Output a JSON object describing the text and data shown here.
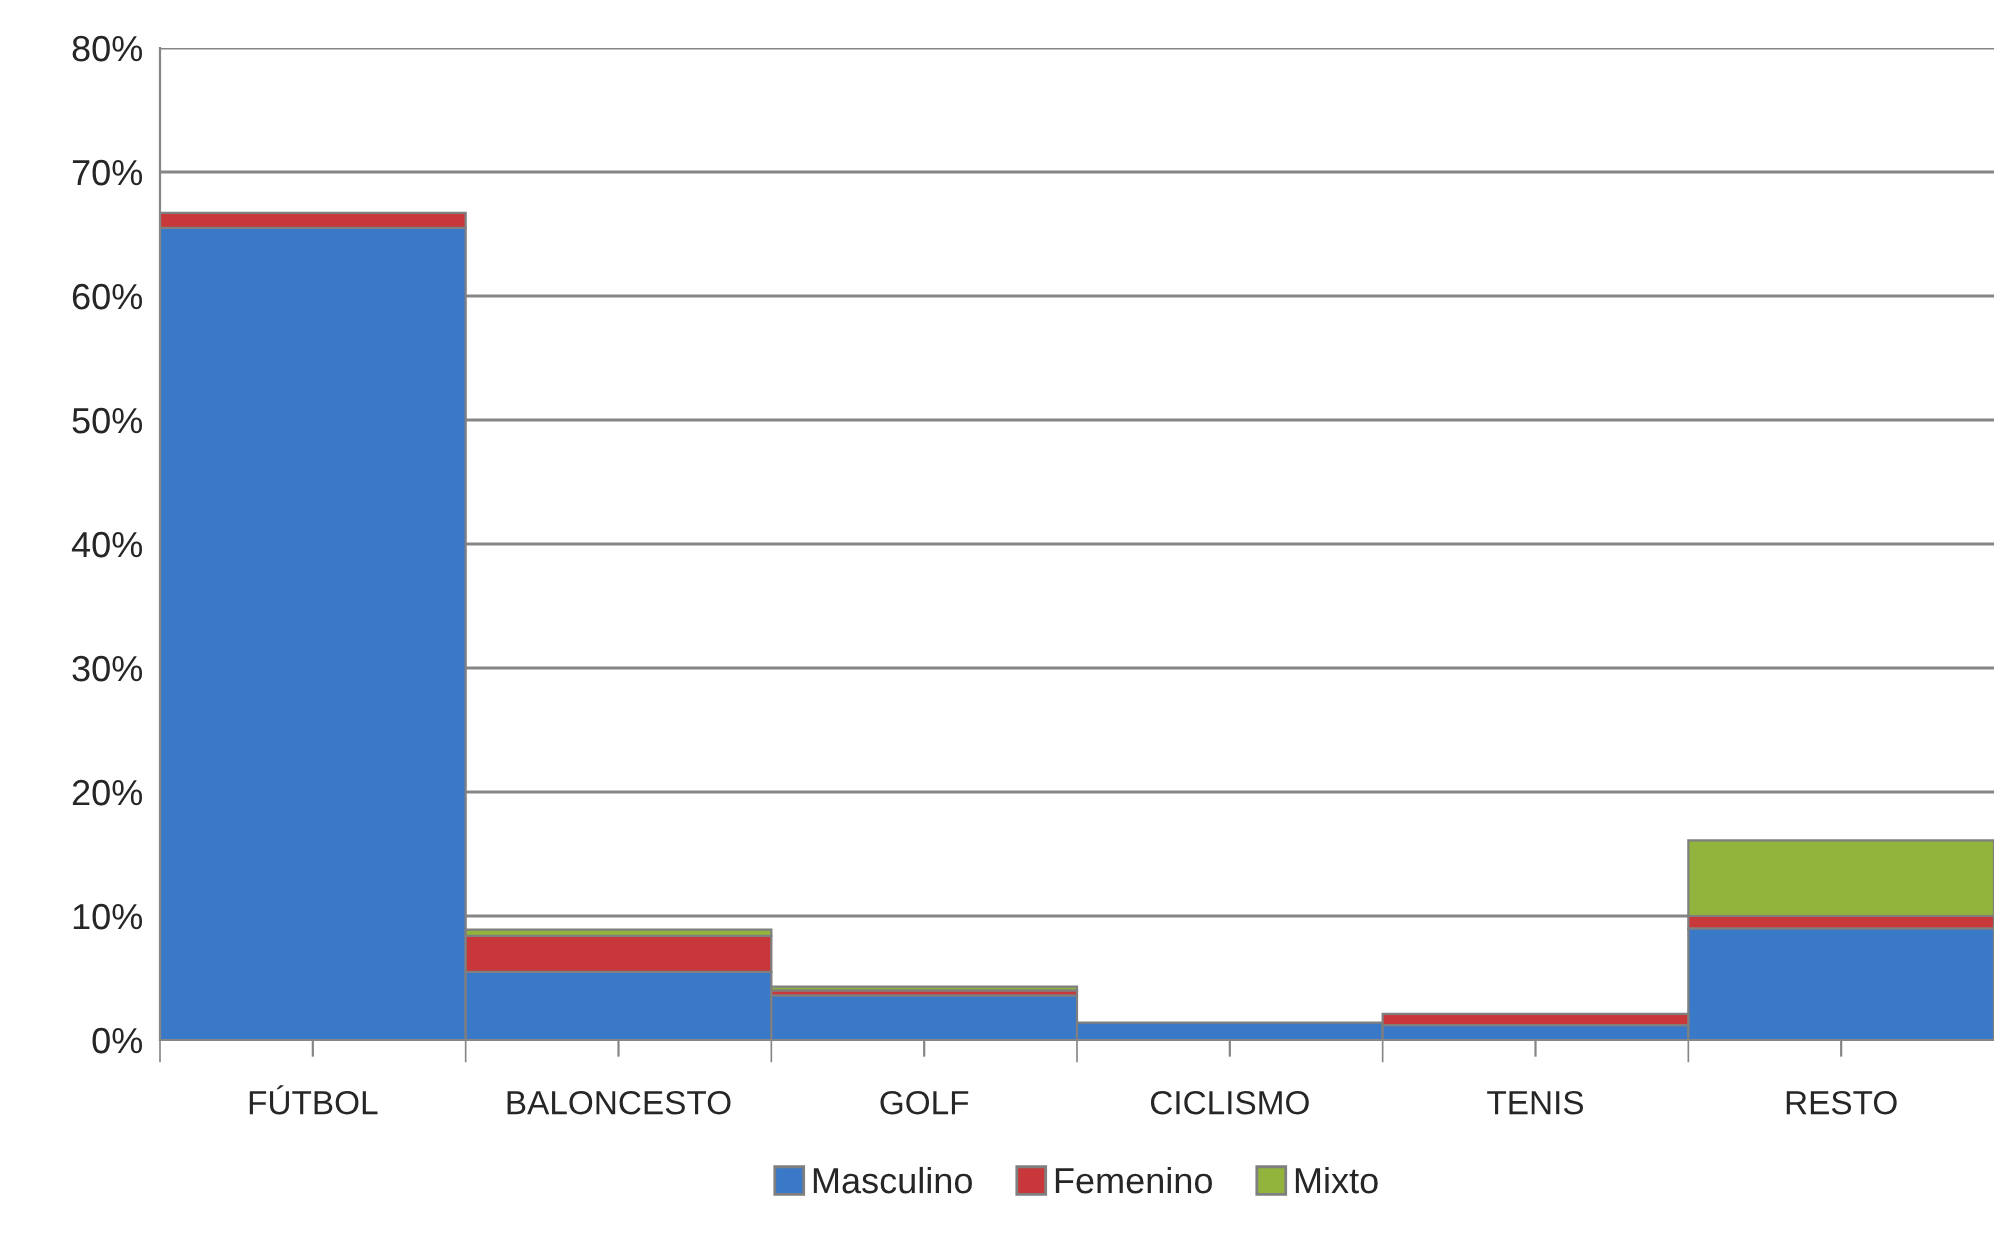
{
  "chart_data": {
    "type": "bar",
    "stacked": true,
    "categories": [
      "FÚTBOL",
      "BALONCESTO",
      "GOLF",
      "CICLISMO",
      "TENIS",
      "RESTO"
    ],
    "series": [
      {
        "name": "Masculino",
        "color": "#3a78c8",
        "values": [
          65.5,
          5.5,
          3.6,
          1.4,
          1.2,
          9.0
        ]
      },
      {
        "name": "Femenino",
        "color": "#c8383a",
        "values": [
          1.2,
          2.9,
          0.4,
          null,
          0.9,
          1.0
        ]
      },
      {
        "name": "Mixto",
        "color": "#92b43c",
        "values": [
          null,
          0.5,
          0.3,
          null,
          null,
          6.1
        ]
      }
    ],
    "ylim": [
      0,
      80
    ],
    "yticks": [
      {
        "value": 0,
        "label": "0%"
      },
      {
        "value": 10,
        "label": "10%"
      },
      {
        "value": 20,
        "label": "20%"
      },
      {
        "value": 30,
        "label": "30%"
      },
      {
        "value": 40,
        "label": "40%"
      },
      {
        "value": 50,
        "label": "50%"
      },
      {
        "value": 60,
        "label": "60%"
      },
      {
        "value": 70,
        "label": "70%"
      },
      {
        "value": 80,
        "label": "80%"
      }
    ],
    "grid": "y",
    "legend": "bottom"
  }
}
